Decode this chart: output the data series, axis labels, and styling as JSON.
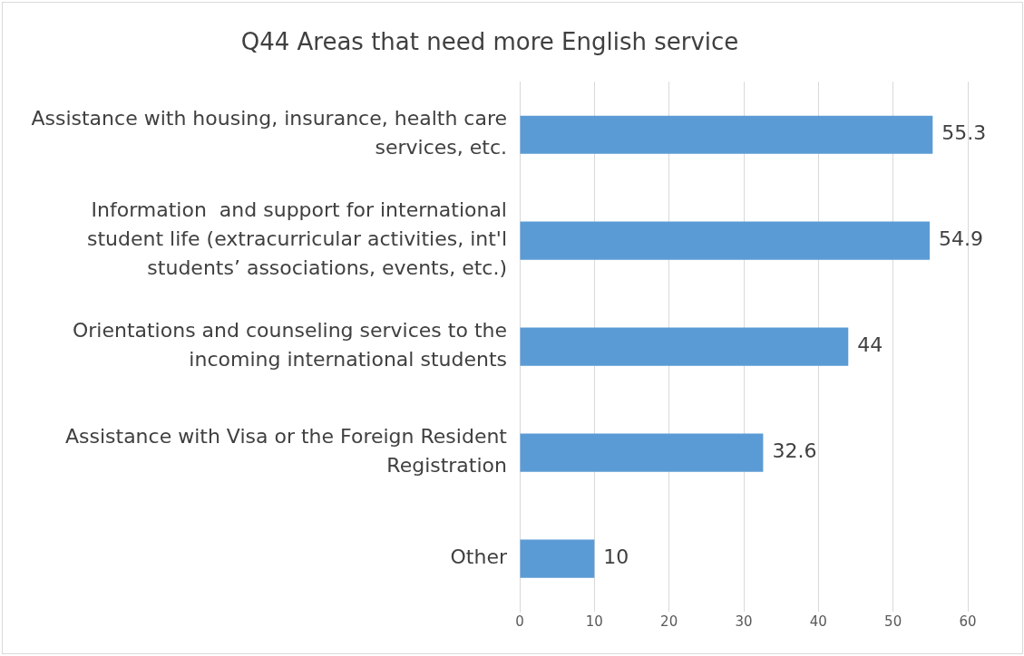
{
  "chart_data": {
    "type": "bar",
    "orientation": "horizontal",
    "title": "Q44 Areas that need more English service",
    "categories": [
      "Assistance with housing, insurance, health care services, etc.",
      "Information  and support for international student life (extracurricular activities, int'l students’ associations, events, etc.)",
      "Orientations and counseling services to the incoming international students",
      "Assistance with Visa or the Foreign Resident Registration",
      "Other"
    ],
    "values": [
      55.3,
      54.9,
      44,
      32.6,
      10
    ],
    "color": "#5b9bd5",
    "xlim": [
      0,
      60
    ],
    "xticks": [
      0,
      10,
      20,
      30,
      40,
      50,
      60
    ],
    "grid": "x",
    "data_labels": true,
    "legend": false
  }
}
